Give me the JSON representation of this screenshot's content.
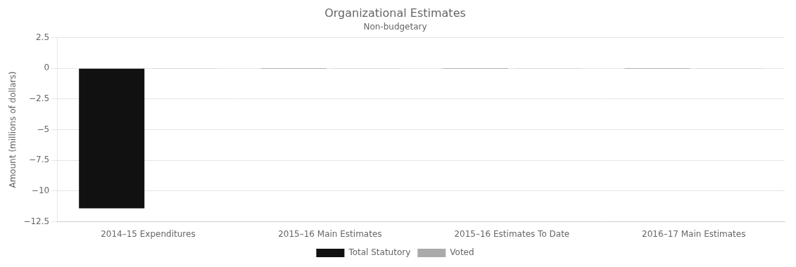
{
  "chart_data": {
    "type": "bar",
    "title": "Organizational Estimates",
    "subtitle": "Non-budgetary",
    "ylabel": "Amount (millions of dollars)",
    "categories": [
      "2014–15 Expenditures",
      "2015–16 Main Estimates",
      "2015–16 Estimates To Date",
      "2016–17 Main Estimates"
    ],
    "series": [
      {
        "name": "Total Statutory",
        "color": "#111111",
        "values": [
          -11.4,
          -0.02,
          -0.02,
          -0.02
        ]
      },
      {
        "name": "Voted",
        "color": "#aaaaaa",
        "values": [
          -0.02,
          -0.02,
          -0.02,
          -0.02
        ]
      }
    ],
    "ylim": [
      -12.5,
      2.5
    ],
    "yticks": [
      2.5,
      0,
      {
        "value": -2.5,
        "label": "−2.5"
      },
      {
        "value": -5,
        "label": "−5"
      },
      {
        "value": -7.5,
        "label": "−7.5"
      },
      {
        "value": -10,
        "label": "−10"
      },
      {
        "value": -12.5,
        "label": "−12.5"
      }
    ],
    "grid": true,
    "legend": "bottom"
  }
}
